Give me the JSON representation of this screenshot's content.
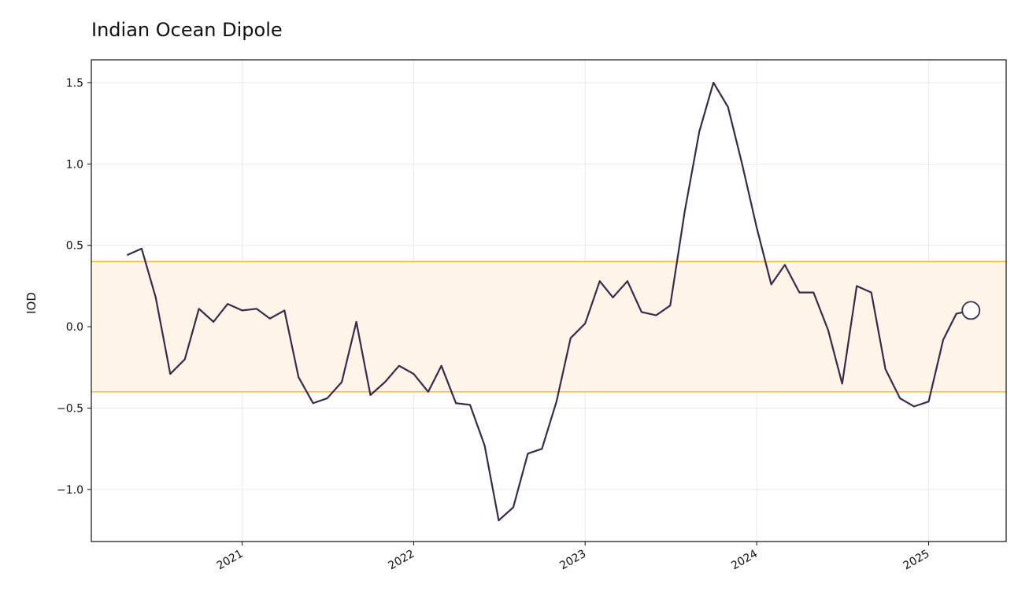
{
  "chart_data": {
    "type": "line",
    "title": "Indian Ocean Dipole",
    "ylabel": "IOD",
    "xlabel": "",
    "ylim": [
      -1.32,
      1.64
    ],
    "y_ticks": [
      -1.0,
      -0.5,
      0.0,
      0.5,
      1.0,
      1.5
    ],
    "y_tick_labels": [
      "−1.0",
      "−0.5",
      "0.0",
      "0.5",
      "1.0",
      "1.5"
    ],
    "x_ticks": [
      "2021-01-01",
      "2022-01-01",
      "2023-01-01",
      "2024-01-01",
      "2025-01-01"
    ],
    "x_tick_labels": [
      "2021",
      "2022",
      "2023",
      "2024",
      "2025"
    ],
    "xlim": [
      "2020-02-15",
      "2025-06-15"
    ],
    "grid": true,
    "threshold_band": {
      "lower": -0.4,
      "upper": 0.4,
      "fill_color": "#FFF5E9",
      "line_color": "#F5B342"
    },
    "line_color": "#3A2A4A",
    "series": [
      {
        "x": [
          "2020-05",
          "2020-06",
          "2020-07",
          "2020-08",
          "2020-09",
          "2020-10",
          "2020-11",
          "2020-12",
          "2021-01",
          "2021-02",
          "2021-03",
          "2021-04",
          "2021-05",
          "2021-06",
          "2021-07",
          "2021-08",
          "2021-09",
          "2021-10",
          "2021-11",
          "2021-12",
          "2022-01",
          "2022-02",
          "2022-03",
          "2022-04",
          "2022-05",
          "2022-06",
          "2022-07",
          "2022-08",
          "2022-09",
          "2022-10",
          "2022-11",
          "2022-12",
          "2023-01",
          "2023-02",
          "2023-03",
          "2023-04",
          "2023-05",
          "2023-06",
          "2023-07",
          "2023-08",
          "2023-09",
          "2023-10",
          "2023-11",
          "2023-12",
          "2024-01",
          "2024-02",
          "2024-03",
          "2024-04",
          "2024-05",
          "2024-06",
          "2024-07",
          "2024-08",
          "2024-09",
          "2024-10",
          "2024-11",
          "2024-12",
          "2025-01",
          "2025-02",
          "2025-03",
          "2025-04"
        ],
        "values": [
          0.44,
          0.48,
          0.18,
          -0.29,
          -0.2,
          0.11,
          0.03,
          0.14,
          0.1,
          0.11,
          0.05,
          0.1,
          -0.31,
          -0.47,
          -0.44,
          -0.34,
          0.03,
          -0.42,
          -0.34,
          -0.24,
          -0.29,
          -0.4,
          -0.24,
          -0.47,
          -0.48,
          -0.73,
          -1.19,
          -1.11,
          -0.78,
          -0.75,
          -0.46,
          -0.07,
          0.02,
          0.28,
          0.18,
          0.28,
          0.09,
          0.07,
          0.13,
          0.71,
          1.2,
          1.5,
          1.35,
          1.0,
          0.61,
          0.26,
          0.38,
          0.21,
          0.21,
          -0.02,
          -0.35,
          0.25,
          0.21,
          -0.26,
          -0.44,
          -0.49,
          -0.46,
          -0.08,
          0.08,
          0.1
        ]
      }
    ],
    "last_point_marker": {
      "x": "2025-04",
      "value": 0.1
    }
  }
}
